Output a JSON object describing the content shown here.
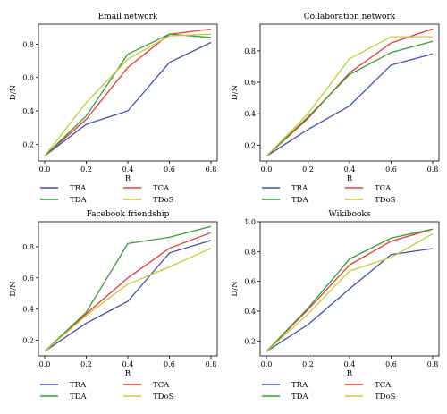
{
  "figure": {
    "series_styles": {
      "TRA": "#4450b0",
      "TCA": "#e83a3a",
      "TDA": "#3a9a3a",
      "TDoS": "#c7c93a"
    },
    "legend_order": [
      "TRA",
      "TCA",
      "TDA",
      "TDoS"
    ]
  },
  "chart_data": [
    {
      "type": "line",
      "title": "Email network",
      "xlabel": "R",
      "ylabel": "D/N",
      "x": [
        0.0,
        0.2,
        0.4,
        0.6,
        0.8
      ],
      "xlim": [
        -0.03,
        0.83
      ],
      "ylim": [
        0.1,
        0.92
      ],
      "xticks": [
        0.0,
        0.2,
        0.4,
        0.6,
        0.8
      ],
      "xtick_labels": [
        "0.0",
        "0.2",
        "0.4",
        "0.6",
        "0.8"
      ],
      "yticks": [
        0.2,
        0.4,
        0.6,
        0.8
      ],
      "ytick_labels": [
        "0.2",
        "0.4",
        "0.6",
        "0.8"
      ],
      "grid": false,
      "legend": "below",
      "series": [
        {
          "name": "TRA",
          "values": [
            0.13,
            0.32,
            0.4,
            0.69,
            0.81
          ]
        },
        {
          "name": "TCA",
          "values": [
            0.13,
            0.35,
            0.66,
            0.86,
            0.89
          ]
        },
        {
          "name": "TDA",
          "values": [
            0.13,
            0.37,
            0.74,
            0.86,
            0.84
          ]
        },
        {
          "name": "TDoS",
          "values": [
            0.13,
            0.45,
            0.71,
            0.85,
            0.86
          ]
        }
      ]
    },
    {
      "type": "line",
      "title": "Collaboration network",
      "xlabel": "R",
      "ylabel": "D/N",
      "x": [
        0.0,
        0.2,
        0.4,
        0.6,
        0.8
      ],
      "xlim": [
        -0.03,
        0.83
      ],
      "ylim": [
        0.1,
        0.97
      ],
      "xticks": [
        0.0,
        0.2,
        0.4,
        0.6,
        0.8
      ],
      "xtick_labels": [
        "0.0",
        "0.2",
        "0.4",
        "0.6",
        "0.8"
      ],
      "yticks": [
        0.2,
        0.4,
        0.6,
        0.8
      ],
      "ytick_labels": [
        "0.2",
        "0.4",
        "0.6",
        "0.8"
      ],
      "grid": false,
      "legend": "below",
      "series": [
        {
          "name": "TRA",
          "values": [
            0.13,
            0.3,
            0.45,
            0.71,
            0.78
          ]
        },
        {
          "name": "TCA",
          "values": [
            0.13,
            0.37,
            0.66,
            0.85,
            0.94
          ]
        },
        {
          "name": "TDA",
          "values": [
            0.13,
            0.38,
            0.65,
            0.79,
            0.86
          ]
        },
        {
          "name": "TDoS",
          "values": [
            0.13,
            0.4,
            0.75,
            0.89,
            0.89
          ]
        }
      ]
    },
    {
      "type": "line",
      "title": "Facebook friendship",
      "xlabel": "R",
      "ylabel": "D/N",
      "x": [
        0.0,
        0.2,
        0.4,
        0.6,
        0.8
      ],
      "xlim": [
        -0.03,
        0.83
      ],
      "ylim": [
        0.1,
        0.96
      ],
      "xticks": [
        0.0,
        0.2,
        0.4,
        0.6,
        0.8
      ],
      "xtick_labels": [
        "0.0",
        "0.2",
        "0.4",
        "0.6",
        "0.8"
      ],
      "yticks": [
        0.2,
        0.4,
        0.6,
        0.8
      ],
      "ytick_labels": [
        "0.2",
        "0.4",
        "0.6",
        "0.8"
      ],
      "grid": false,
      "legend": "below",
      "series": [
        {
          "name": "TRA",
          "values": [
            0.13,
            0.31,
            0.45,
            0.76,
            0.84
          ]
        },
        {
          "name": "TCA",
          "values": [
            0.13,
            0.37,
            0.6,
            0.79,
            0.89
          ]
        },
        {
          "name": "TDA",
          "values": [
            0.13,
            0.38,
            0.82,
            0.86,
            0.93
          ]
        },
        {
          "name": "TDoS",
          "values": [
            0.13,
            0.36,
            0.56,
            0.67,
            0.79
          ]
        }
      ]
    },
    {
      "type": "line",
      "title": "Wikibooks",
      "xlabel": "R",
      "ylabel": "D/N",
      "x": [
        0.0,
        0.2,
        0.4,
        0.6,
        0.8
      ],
      "xlim": [
        -0.03,
        0.83
      ],
      "ylim": [
        0.1,
        1.0
      ],
      "xticks": [
        0.0,
        0.2,
        0.4,
        0.6,
        0.8
      ],
      "xtick_labels": [
        "0.0",
        "0.2",
        "0.4",
        "0.6",
        "0.8"
      ],
      "yticks": [
        0.2,
        0.4,
        0.6,
        0.8,
        1.0
      ],
      "ytick_labels": [
        "0.2",
        "0.4",
        "0.6",
        "0.8",
        "1.0"
      ],
      "grid": false,
      "legend": "below",
      "series": [
        {
          "name": "TRA",
          "values": [
            0.13,
            0.31,
            0.55,
            0.78,
            0.82
          ]
        },
        {
          "name": "TCA",
          "values": [
            0.13,
            0.41,
            0.71,
            0.87,
            0.95
          ]
        },
        {
          "name": "TDA",
          "values": [
            0.13,
            0.42,
            0.75,
            0.89,
            0.95
          ]
        },
        {
          "name": "TDoS",
          "values": [
            0.13,
            0.38,
            0.67,
            0.76,
            0.92
          ]
        }
      ]
    }
  ]
}
